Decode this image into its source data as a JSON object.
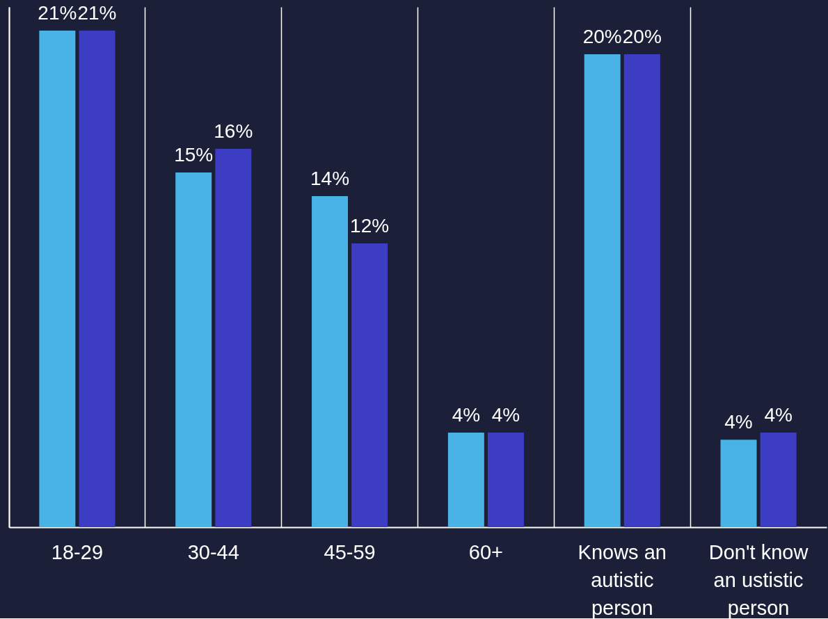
{
  "chart_data": {
    "type": "bar",
    "categories": [
      "18-29",
      "30-44",
      "45-59",
      "60+",
      "Knows an autistic person",
      "Don't know an ustistic person"
    ],
    "series": [
      {
        "color": "#4ab3e6",
        "values": [
          21,
          15,
          14,
          4,
          20,
          3.7
        ],
        "value_labels": [
          "21%",
          "15%",
          "14%",
          "4%",
          "20%",
          "4%"
        ]
      },
      {
        "color": "#3d3dc4",
        "values": [
          21,
          16,
          12,
          4,
          20,
          4
        ],
        "value_labels": [
          "21%",
          "16%",
          "12%",
          "4%",
          "20%",
          "4%"
        ]
      }
    ],
    "grid": "x",
    "legend": false
  }
}
